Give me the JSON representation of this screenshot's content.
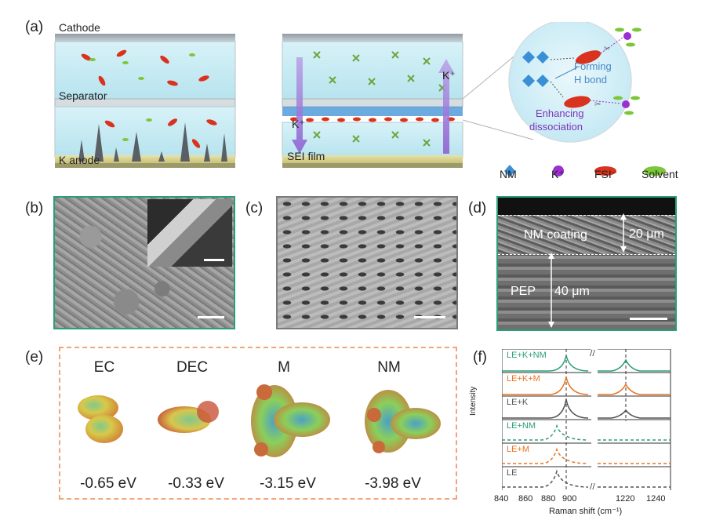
{
  "panel_a": {
    "label": "(a)",
    "cathode": "Cathode",
    "separator": "Separator",
    "k_anode": "K anode",
    "sei_film": "SEI film",
    "k_plus_left": "K⁺",
    "k_plus_right": "K⁺",
    "forming": "Forming",
    "h_bond": "H bond",
    "enhancing": "Enhancing",
    "dissociation": "dissociation",
    "legend": {
      "nm": "NM",
      "k": "K⁺",
      "fsi": "FSI⁻",
      "solvent": "Solvent"
    },
    "colors": {
      "nm": "#3a8fd6",
      "k": "#9b2fd0",
      "fsi": "#d9321e",
      "solvent": "#7cc63a",
      "purple_text": "#7a35b8",
      "blue_text": "#4a88c9"
    }
  },
  "panel_b": {
    "label": "(b)"
  },
  "panel_c": {
    "label": "(c)"
  },
  "panel_d": {
    "label": "(d)",
    "nm_coating": "NM coating",
    "thickness_top": "20 μm",
    "pep": "PEP",
    "thickness_bottom": "40 μm"
  },
  "panel_e": {
    "label": "(e)",
    "molecules": [
      {
        "name": "EC",
        "energy": "-0.65 eV"
      },
      {
        "name": "DEC",
        "energy": "-0.33 eV"
      },
      {
        "name": "M",
        "energy": "-3.15 eV"
      },
      {
        "name": "NM",
        "energy": "-3.98 eV"
      }
    ]
  },
  "panel_f": {
    "label": "(f)",
    "chart_data": {
      "type": "line",
      "title": "",
      "xlabel": "Raman shift (cm⁻¹)",
      "ylabel": "Intensity",
      "x_ticks": [
        "840",
        "860",
        "880",
        "900",
        "1220",
        "1240"
      ],
      "axis_break": true,
      "series": [
        {
          "name": "LE+K+NM",
          "color": "#2a9d79",
          "style": "solid"
        },
        {
          "name": "LE+K+M",
          "color": "#e8731f",
          "style": "solid"
        },
        {
          "name": "LE+K",
          "color": "#555555",
          "style": "solid"
        },
        {
          "name": "LE+NM",
          "color": "#2a9d79",
          "style": "dashed"
        },
        {
          "name": "LE+M",
          "color": "#e8731f",
          "style": "dashed"
        },
        {
          "name": "LE",
          "color": "#555555",
          "style": "dashed"
        }
      ]
    }
  }
}
